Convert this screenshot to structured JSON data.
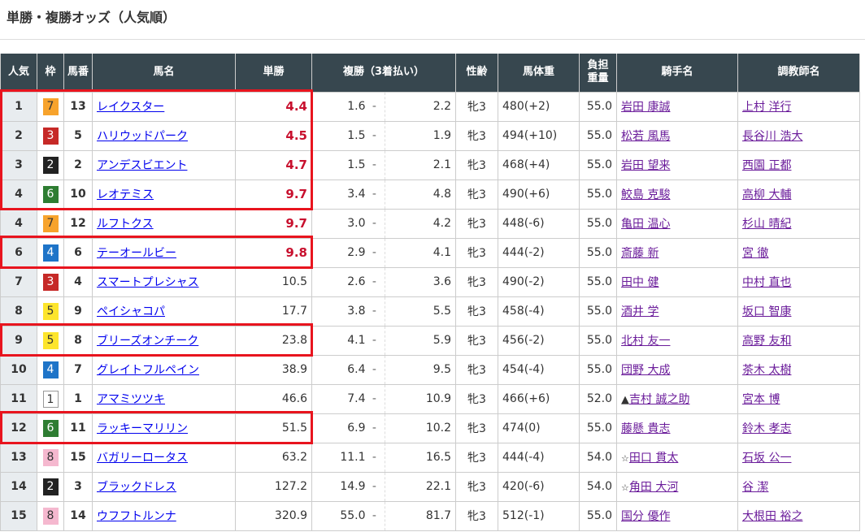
{
  "title": "単勝・複勝オッズ（人気順）",
  "headers": {
    "pop": "人気",
    "waku": "枠",
    "umaban": "馬番",
    "name": "馬名",
    "win": "単勝",
    "place": "複勝（3着払い）",
    "sexage": "性齢",
    "weight": "馬体重",
    "load1": "負担",
    "load2": "重量",
    "jockey": "騎手名",
    "trainer": "調教師名"
  },
  "frame_colors": {
    "1": "#ffffff",
    "2": "#222222",
    "3": "#c62927",
    "4": "#1e74c8",
    "5": "#fde52c",
    "6": "#2e7d32",
    "7": "#f7a32c",
    "8": "#f5b8cf"
  },
  "highlight_color": "#e8141e",
  "rows": [
    {
      "pop": "1",
      "waku": "7",
      "umaban": "13",
      "name": "レイクスター",
      "win": "4.4",
      "place_lo": "1.6",
      "place_hi": "2.2",
      "sexage": "牝3",
      "weight": "480",
      "diff": "(+2)",
      "load": "55.0",
      "jockey": "岩田 康誠",
      "trainer": "上村 洋行",
      "highlighted": true,
      "win_bold": true
    },
    {
      "pop": "2",
      "waku": "3",
      "umaban": "5",
      "name": "ハリウッドパーク",
      "win": "4.5",
      "place_lo": "1.5",
      "place_hi": "1.9",
      "sexage": "牝3",
      "weight": "494",
      "diff": "(+10)",
      "load": "55.0",
      "jockey": "松若 風馬",
      "trainer": "長谷川 浩大",
      "highlighted": true,
      "win_bold": true
    },
    {
      "pop": "3",
      "waku": "2",
      "umaban": "2",
      "name": "アンデスビエント",
      "win": "4.7",
      "place_lo": "1.5",
      "place_hi": "2.1",
      "sexage": "牝3",
      "weight": "468",
      "diff": "(+4)",
      "load": "55.0",
      "jockey": "岩田 望来",
      "trainer": "西園 正都",
      "highlighted": true,
      "win_bold": true
    },
    {
      "pop": "4",
      "waku": "6",
      "umaban": "10",
      "name": "レオテミス",
      "win": "9.7",
      "place_lo": "3.4",
      "place_hi": "4.8",
      "sexage": "牝3",
      "weight": "490",
      "diff": "(+6)",
      "load": "55.0",
      "jockey": "鮫島 克駿",
      "trainer": "高柳 大輔",
      "highlighted": true,
      "win_bold": true
    },
    {
      "pop": "4",
      "waku": "7",
      "umaban": "12",
      "name": "ルフトクス",
      "win": "9.7",
      "place_lo": "3.0",
      "place_hi": "4.2",
      "sexage": "牝3",
      "weight": "448",
      "diff": "(-6)",
      "load": "55.0",
      "jockey": "亀田 温心",
      "trainer": "杉山 晴紀",
      "highlighted": false,
      "win_bold": true
    },
    {
      "pop": "6",
      "waku": "4",
      "umaban": "6",
      "name": "テーオールビー",
      "win": "9.8",
      "place_lo": "2.9",
      "place_hi": "4.1",
      "sexage": "牝3",
      "weight": "444",
      "diff": "(-2)",
      "load": "55.0",
      "jockey": "斎藤 新",
      "trainer": "宮 徹",
      "highlighted": true,
      "win_bold": true
    },
    {
      "pop": "7",
      "waku": "3",
      "umaban": "4",
      "name": "スマートプレシャス",
      "win": "10.5",
      "place_lo": "2.6",
      "place_hi": "3.6",
      "sexage": "牝3",
      "weight": "490",
      "diff": "(-2)",
      "load": "55.0",
      "jockey": "田中 健",
      "trainer": "中村 直也",
      "highlighted": false,
      "win_bold": false
    },
    {
      "pop": "8",
      "waku": "5",
      "umaban": "9",
      "name": "ペイシャコパ",
      "win": "17.7",
      "place_lo": "3.8",
      "place_hi": "5.5",
      "sexage": "牝3",
      "weight": "458",
      "diff": "(-4)",
      "load": "55.0",
      "jockey": "酒井 学",
      "trainer": "坂口 智康",
      "highlighted": false,
      "win_bold": false
    },
    {
      "pop": "9",
      "waku": "5",
      "umaban": "8",
      "name": "ブリーズオンチーク",
      "win": "23.8",
      "place_lo": "4.1",
      "place_hi": "5.9",
      "sexage": "牝3",
      "weight": "456",
      "diff": "(-2)",
      "load": "55.0",
      "jockey": "北村 友一",
      "trainer": "高野 友和",
      "highlighted": true,
      "win_bold": false
    },
    {
      "pop": "10",
      "waku": "4",
      "umaban": "7",
      "name": "グレイトフルペイン",
      "win": "38.9",
      "place_lo": "6.4",
      "place_hi": "9.5",
      "sexage": "牝3",
      "weight": "454",
      "diff": "(-4)",
      "load": "55.0",
      "jockey": "団野 大成",
      "trainer": "茶木 太樹",
      "highlighted": false,
      "win_bold": false
    },
    {
      "pop": "11",
      "waku": "1",
      "umaban": "1",
      "name": "アマミツツキ",
      "win": "46.6",
      "place_lo": "7.4",
      "place_hi": "10.9",
      "sexage": "牝3",
      "weight": "466",
      "diff": "(+6)",
      "load": "52.0",
      "jockey_mark": "▲",
      "jockey": "吉村 誠之助",
      "trainer": "宮本 博",
      "highlighted": false,
      "win_bold": false
    },
    {
      "pop": "12",
      "waku": "6",
      "umaban": "11",
      "name": "ラッキーマリリン",
      "win": "51.5",
      "place_lo": "6.9",
      "place_hi": "10.2",
      "sexage": "牝3",
      "weight": "474",
      "diff": "(0)",
      "load": "55.0",
      "jockey": "藤懸 貴志",
      "trainer": "鈴木 孝志",
      "highlighted": true,
      "win_bold": false
    },
    {
      "pop": "13",
      "waku": "8",
      "umaban": "15",
      "name": "バガリーロータス",
      "win": "63.2",
      "place_lo": "11.1",
      "place_hi": "16.5",
      "sexage": "牝3",
      "weight": "444",
      "diff": "(-4)",
      "load": "54.0",
      "jockey_mark": "☆",
      "jockey": "田口 貫太",
      "trainer": "石坂 公一",
      "highlighted": false,
      "win_bold": false
    },
    {
      "pop": "14",
      "waku": "2",
      "umaban": "3",
      "name": "ブラックドレス",
      "win": "127.2",
      "place_lo": "14.9",
      "place_hi": "22.1",
      "sexage": "牝3",
      "weight": "420",
      "diff": "(-6)",
      "load": "54.0",
      "jockey_mark": "☆",
      "jockey": "角田 大河",
      "trainer": "谷 潔",
      "highlighted": false,
      "win_bold": false
    },
    {
      "pop": "15",
      "waku": "8",
      "umaban": "14",
      "name": "ウフフトルンナ",
      "win": "320.9",
      "place_lo": "55.0",
      "place_hi": "81.7",
      "sexage": "牝3",
      "weight": "512",
      "diff": "(-1)",
      "load": "55.0",
      "jockey": "国分 優作",
      "trainer": "大根田 裕之",
      "highlighted": false,
      "win_bold": false
    }
  ]
}
